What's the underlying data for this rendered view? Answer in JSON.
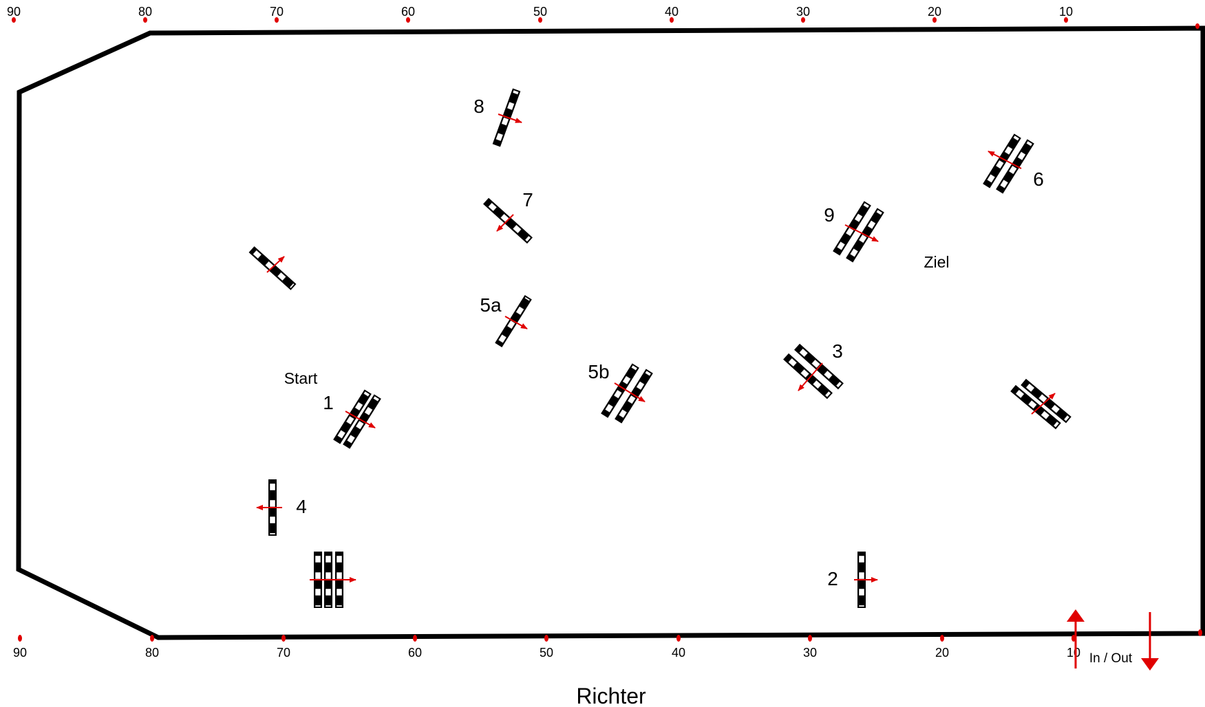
{
  "colors": {
    "outline": "#000000",
    "marker": "#e00000",
    "arrow": "#e00000",
    "pole_dark": "#000000",
    "pole_light": "#ffffff"
  },
  "scale": {
    "top_labels": [
      "90",
      "80",
      "70",
      "60",
      "50",
      "40",
      "30",
      "20",
      "10"
    ],
    "bottom_labels": [
      "90",
      "80",
      "70",
      "60",
      "50",
      "40",
      "30",
      "20",
      "10"
    ]
  },
  "obstacles": {
    "labels": {
      "o1": "1",
      "o2": "2",
      "o3": "3",
      "o4": "4",
      "o5a": "5a",
      "o5b": "5b",
      "o6": "6",
      "o7": "7",
      "o8": "8",
      "o9": "9"
    }
  },
  "texts": {
    "start": "Start",
    "finish": "Ziel",
    "in_out": "In / Out",
    "judge": "Richter"
  }
}
